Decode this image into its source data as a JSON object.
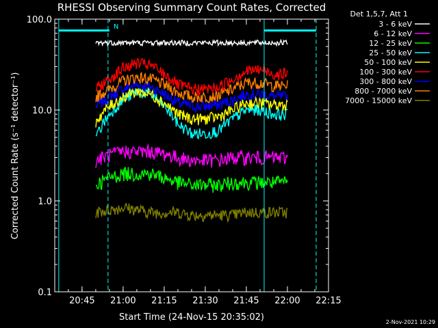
{
  "chart_data": {
    "type": "line",
    "title": "RHESSI Observing Summary Count Rates, Corrected",
    "xlabel": "Start Time (24-Nov-15 20:35:02)",
    "ylabel": "Corrected Count Rate (s⁻¹ detector⁻¹)",
    "y_scale": "log",
    "ylim": [
      0.1,
      100.0
    ],
    "y_ticks": [
      "0.1",
      "1.0",
      "10.0",
      "100.0"
    ],
    "xlim": [
      "20:35:02",
      "22:15"
    ],
    "x_ticks": [
      "20:45",
      "21:00",
      "21:15",
      "21:30",
      "21:45",
      "22:00",
      "22:15"
    ],
    "legend_title": "Det 1,5,7, Att 1",
    "legend_position": "right",
    "footer": "2-Nov-2021 10:29",
    "annotation": "N",
    "vertical_markers": [
      {
        "time": "20:36:30",
        "style": "solid",
        "color": "#00ffff"
      },
      {
        "time": "20:54:30",
        "style": "dashed",
        "color": "#00ffff"
      },
      {
        "time": "21:51:30",
        "style": "solid",
        "color": "#00ffff"
      },
      {
        "time": "22:10:30",
        "style": "dashed",
        "color": "#00ffff"
      }
    ],
    "night_bars": [
      {
        "from": "20:36:30",
        "to": "20:55:00",
        "level": 70.0
      },
      {
        "from": "21:51:30",
        "to": "22:10:30",
        "level": 70.0
      }
    ],
    "x_minutes_from_start": [
      15,
      20,
      25,
      30,
      35,
      40,
      45,
      50,
      55,
      60,
      65,
      70,
      75,
      80,
      85
    ],
    "series": [
      {
        "name": "3 - 6 keV",
        "color": "#ffffff",
        "values": [
          55,
          55,
          55,
          55,
          55,
          55,
          55,
          55,
          55,
          55,
          55,
          55,
          55,
          55,
          55
        ]
      },
      {
        "name": "6 - 12 keV",
        "color": "#ff00ff",
        "values": [
          2.8,
          3.2,
          3.5,
          3.5,
          3.5,
          3.3,
          3.0,
          2.8,
          2.8,
          2.8,
          3.0,
          3.0,
          3.0,
          3.0,
          3.0
        ]
      },
      {
        "name": "12 - 25 keV",
        "color": "#00ff00",
        "values": [
          1.5,
          1.8,
          2.0,
          2.0,
          2.0,
          1.8,
          1.6,
          1.5,
          1.5,
          1.5,
          1.6,
          1.6,
          1.6,
          1.6,
          1.6
        ]
      },
      {
        "name": "25 - 50 keV",
        "color": "#00ffff",
        "values": [
          5,
          9,
          13,
          16,
          15,
          11,
          7,
          5.5,
          5.5,
          6,
          8,
          10,
          10,
          9,
          9
        ]
      },
      {
        "name": "50 - 100 keV",
        "color": "#ffff00",
        "values": [
          7.5,
          11,
          14,
          16,
          15,
          12,
          9,
          8,
          8,
          8.5,
          10,
          12,
          12,
          11.5,
          11.5
        ]
      },
      {
        "name": "100 - 300 keV",
        "color": "#ff0000",
        "values": [
          17,
          22,
          29,
          33,
          31,
          25,
          19,
          17,
          17,
          18,
          22,
          27,
          28,
          25,
          25
        ]
      },
      {
        "name": "300 - 800 keV",
        "color": "#0000ff",
        "values": [
          11,
          14,
          17,
          19,
          18,
          15,
          12,
          11,
          11,
          11.5,
          13,
          15,
          15,
          14,
          14
        ]
      },
      {
        "name": "800 - 7000 keV",
        "color": "#ff7f00",
        "values": [
          14,
          17,
          21,
          23,
          22,
          19,
          15.5,
          14,
          14,
          14.5,
          17,
          20,
          20,
          18.5,
          18.5
        ]
      },
      {
        "name": "7000 - 15000 keV",
        "color": "#7f7f00",
        "values": [
          0.75,
          0.8,
          0.85,
          0.8,
          0.75,
          0.75,
          0.75,
          0.7,
          0.7,
          0.7,
          0.7,
          0.75,
          0.75,
          0.75,
          0.75
        ]
      }
    ]
  }
}
